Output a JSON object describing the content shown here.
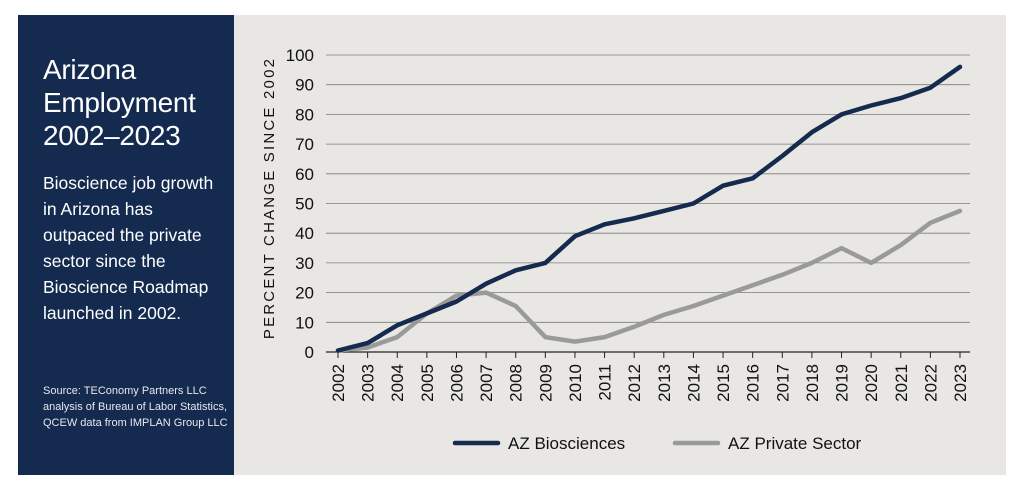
{
  "panel": {
    "title": "Arizona Employment 2002–2023",
    "description": "Bioscience job growth in Arizona has outpaced the private sector since the Bioscience Roadmap launched in 2002.",
    "source": "Source: TEConomy Partners LLC analysis of Bureau of Labor Statistics, QCEW data from IMPLAN Group LLC"
  },
  "colors": {
    "panel_bg": "#142a4e",
    "chart_bg": "#e8e7e3",
    "biosciences": "#142a4e",
    "private_sector": "#9a9a9a",
    "grid": "#7c7c7c"
  },
  "chart_data": {
    "type": "line",
    "ylabel": "PERCENT CHANGE SINCE 2002",
    "xlabel": "",
    "ylim": [
      0,
      100
    ],
    "yticks": [
      0,
      10,
      20,
      30,
      40,
      50,
      60,
      70,
      80,
      90,
      100
    ],
    "grid": true,
    "legend_position": "bottom",
    "x": [
      "2002",
      "2003",
      "2004",
      "2005",
      "2006",
      "2007",
      "2008",
      "2009",
      "2010",
      "2011",
      "2012",
      "2013",
      "2014",
      "2015",
      "2016",
      "2017",
      "2018",
      "2019",
      "2020",
      "2021",
      "2022",
      "2023"
    ],
    "series": [
      {
        "name": "AZ Biosciences",
        "color": "#142a4e",
        "values": [
          0.5,
          3,
          9,
          13,
          17,
          23,
          27.5,
          30,
          39,
          43,
          45,
          47.5,
          50,
          56,
          58.5,
          66,
          74,
          80,
          83,
          85.5,
          89,
          96
        ]
      },
      {
        "name": "AZ Private Sector",
        "color": "#9a9a9a",
        "values": [
          0.5,
          1.5,
          5,
          13,
          19,
          20,
          15.5,
          5,
          3.5,
          5,
          8.5,
          12.5,
          15.5,
          19,
          22.5,
          26,
          30,
          35,
          30,
          36,
          43.5,
          47.5
        ]
      }
    ]
  }
}
